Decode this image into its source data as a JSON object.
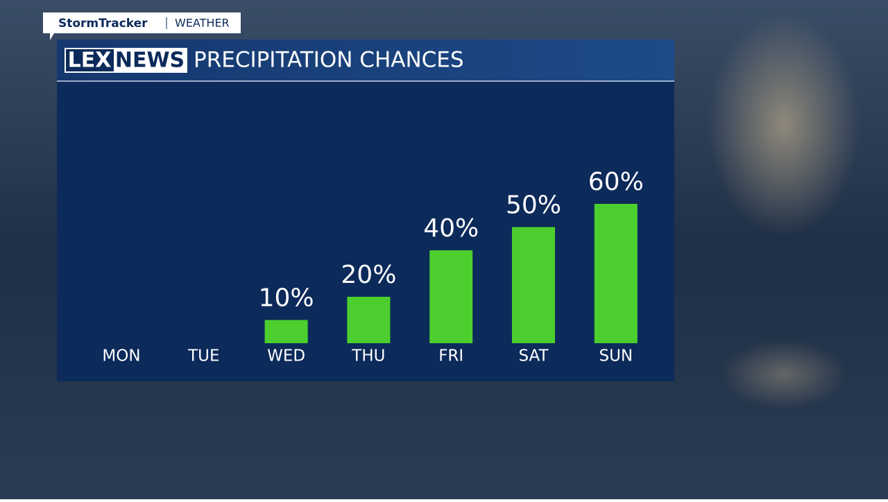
{
  "header": {
    "brand": "StormTracker",
    "section": "WEATHER",
    "logo_left": "LEX",
    "logo_right": "NEWS"
  },
  "chart_data": {
    "type": "bar",
    "title": "PRECIPITATION CHANCES",
    "categories": [
      "MON",
      "TUE",
      "WED",
      "THU",
      "FRI",
      "SAT",
      "SUN"
    ],
    "values": [
      null,
      null,
      10,
      20,
      40,
      50,
      60
    ],
    "value_labels": [
      null,
      null,
      "10%",
      "20%",
      "40%",
      "50%",
      "60%"
    ],
    "color": "#4ccf2e"
  }
}
